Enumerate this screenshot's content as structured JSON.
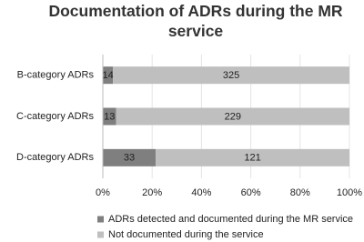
{
  "chart_data": {
    "type": "bar",
    "orientation": "horizontal",
    "stacked_percent": true,
    "title": "Documentation of ADRs during the MR service",
    "categories": [
      "B-category ADRs",
      "C-category ADRs",
      "D-category ADRs"
    ],
    "series": [
      {
        "name": "ADRs detected and documented during the MR service",
        "color": "#7f7f7f",
        "values": [
          14,
          13,
          33
        ]
      },
      {
        "name": "Not documented during the service",
        "color": "#bfbfbf",
        "values": [
          325,
          229,
          121
        ]
      }
    ],
    "xlim": [
      0,
      100
    ],
    "xticks": [
      {
        "value": 0,
        "label": "0%"
      },
      {
        "value": 20,
        "label": "20%"
      },
      {
        "value": 40,
        "label": "40%"
      },
      {
        "value": 60,
        "label": "60%"
      },
      {
        "value": 80,
        "label": "80%"
      },
      {
        "value": 100,
        "label": "100%"
      }
    ],
    "grid": true,
    "legend": "bottom"
  }
}
